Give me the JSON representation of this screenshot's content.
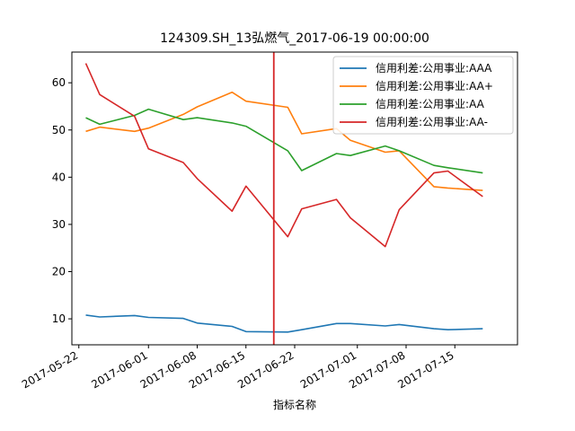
{
  "chart_data": {
    "type": "line",
    "title": "124309.SH_13弘燃气_2017-06-19 00:00:00",
    "xlabel": "指标名称",
    "ylabel": "",
    "x_tick_labels": [
      "2017-05-22",
      "2017-06-01",
      "2017-06-08",
      "2017-06-15",
      "2017-06-22",
      "2017-07-01",
      "2017-07-08",
      "2017-07-15"
    ],
    "x_ticks": [
      "2017-05-22",
      "2017-06-01",
      "2017-06-08",
      "2017-06-15",
      "2017-06-22",
      "2017-07-01",
      "2017-07-08",
      "2017-07-15"
    ],
    "y_ticks": [
      10,
      20,
      30,
      40,
      50,
      60
    ],
    "xlim": [
      "2017-05-21",
      "2017-07-24"
    ],
    "ylim": [
      4.5,
      66.5
    ],
    "vline": {
      "x": "2017-06-19",
      "color": "#d62728"
    },
    "legend_position": "upper right",
    "grid": false,
    "x": [
      "2017-05-23",
      "2017-05-25",
      "2017-05-30",
      "2017-06-01",
      "2017-06-06",
      "2017-06-08",
      "2017-06-13",
      "2017-06-15",
      "2017-06-21",
      "2017-06-23",
      "2017-06-28",
      "2017-06-30",
      "2017-07-05",
      "2017-07-07",
      "2017-07-12",
      "2017-07-14",
      "2017-07-19"
    ],
    "series": [
      {
        "name": "信用利差:公用事业:AAA",
        "color": "#1f77b4",
        "values": [
          10.8,
          10.4,
          10.7,
          10.3,
          10.1,
          9.1,
          8.4,
          7.3,
          7.2,
          7.7,
          9.0,
          9.0,
          8.5,
          8.8,
          7.9,
          7.7,
          7.9
        ]
      },
      {
        "name": "信用利差:公用事业:AA+",
        "color": "#ff7f0e",
        "values": [
          49.7,
          50.6,
          49.7,
          50.4,
          53.3,
          54.9,
          58.0,
          56.1,
          54.8,
          49.2,
          50.3,
          47.8,
          45.3,
          45.6,
          38.0,
          37.7,
          37.2
        ]
      },
      {
        "name": "信用利差:公用事业:AA",
        "color": "#2ca02c",
        "values": [
          52.6,
          51.2,
          53.1,
          54.4,
          52.2,
          52.6,
          51.5,
          50.8,
          45.6,
          41.4,
          45.0,
          44.6,
          46.6,
          45.6,
          42.5,
          42.0,
          40.9
        ]
      },
      {
        "name": "信用利差:公用事业:AA-",
        "color": "#d62728",
        "values": [
          64.1,
          57.5,
          52.9,
          46.0,
          43.1,
          39.7,
          32.8,
          38.1,
          27.4,
          33.3,
          35.3,
          31.4,
          25.3,
          33.1,
          40.9,
          41.3,
          35.9
        ]
      }
    ]
  }
}
